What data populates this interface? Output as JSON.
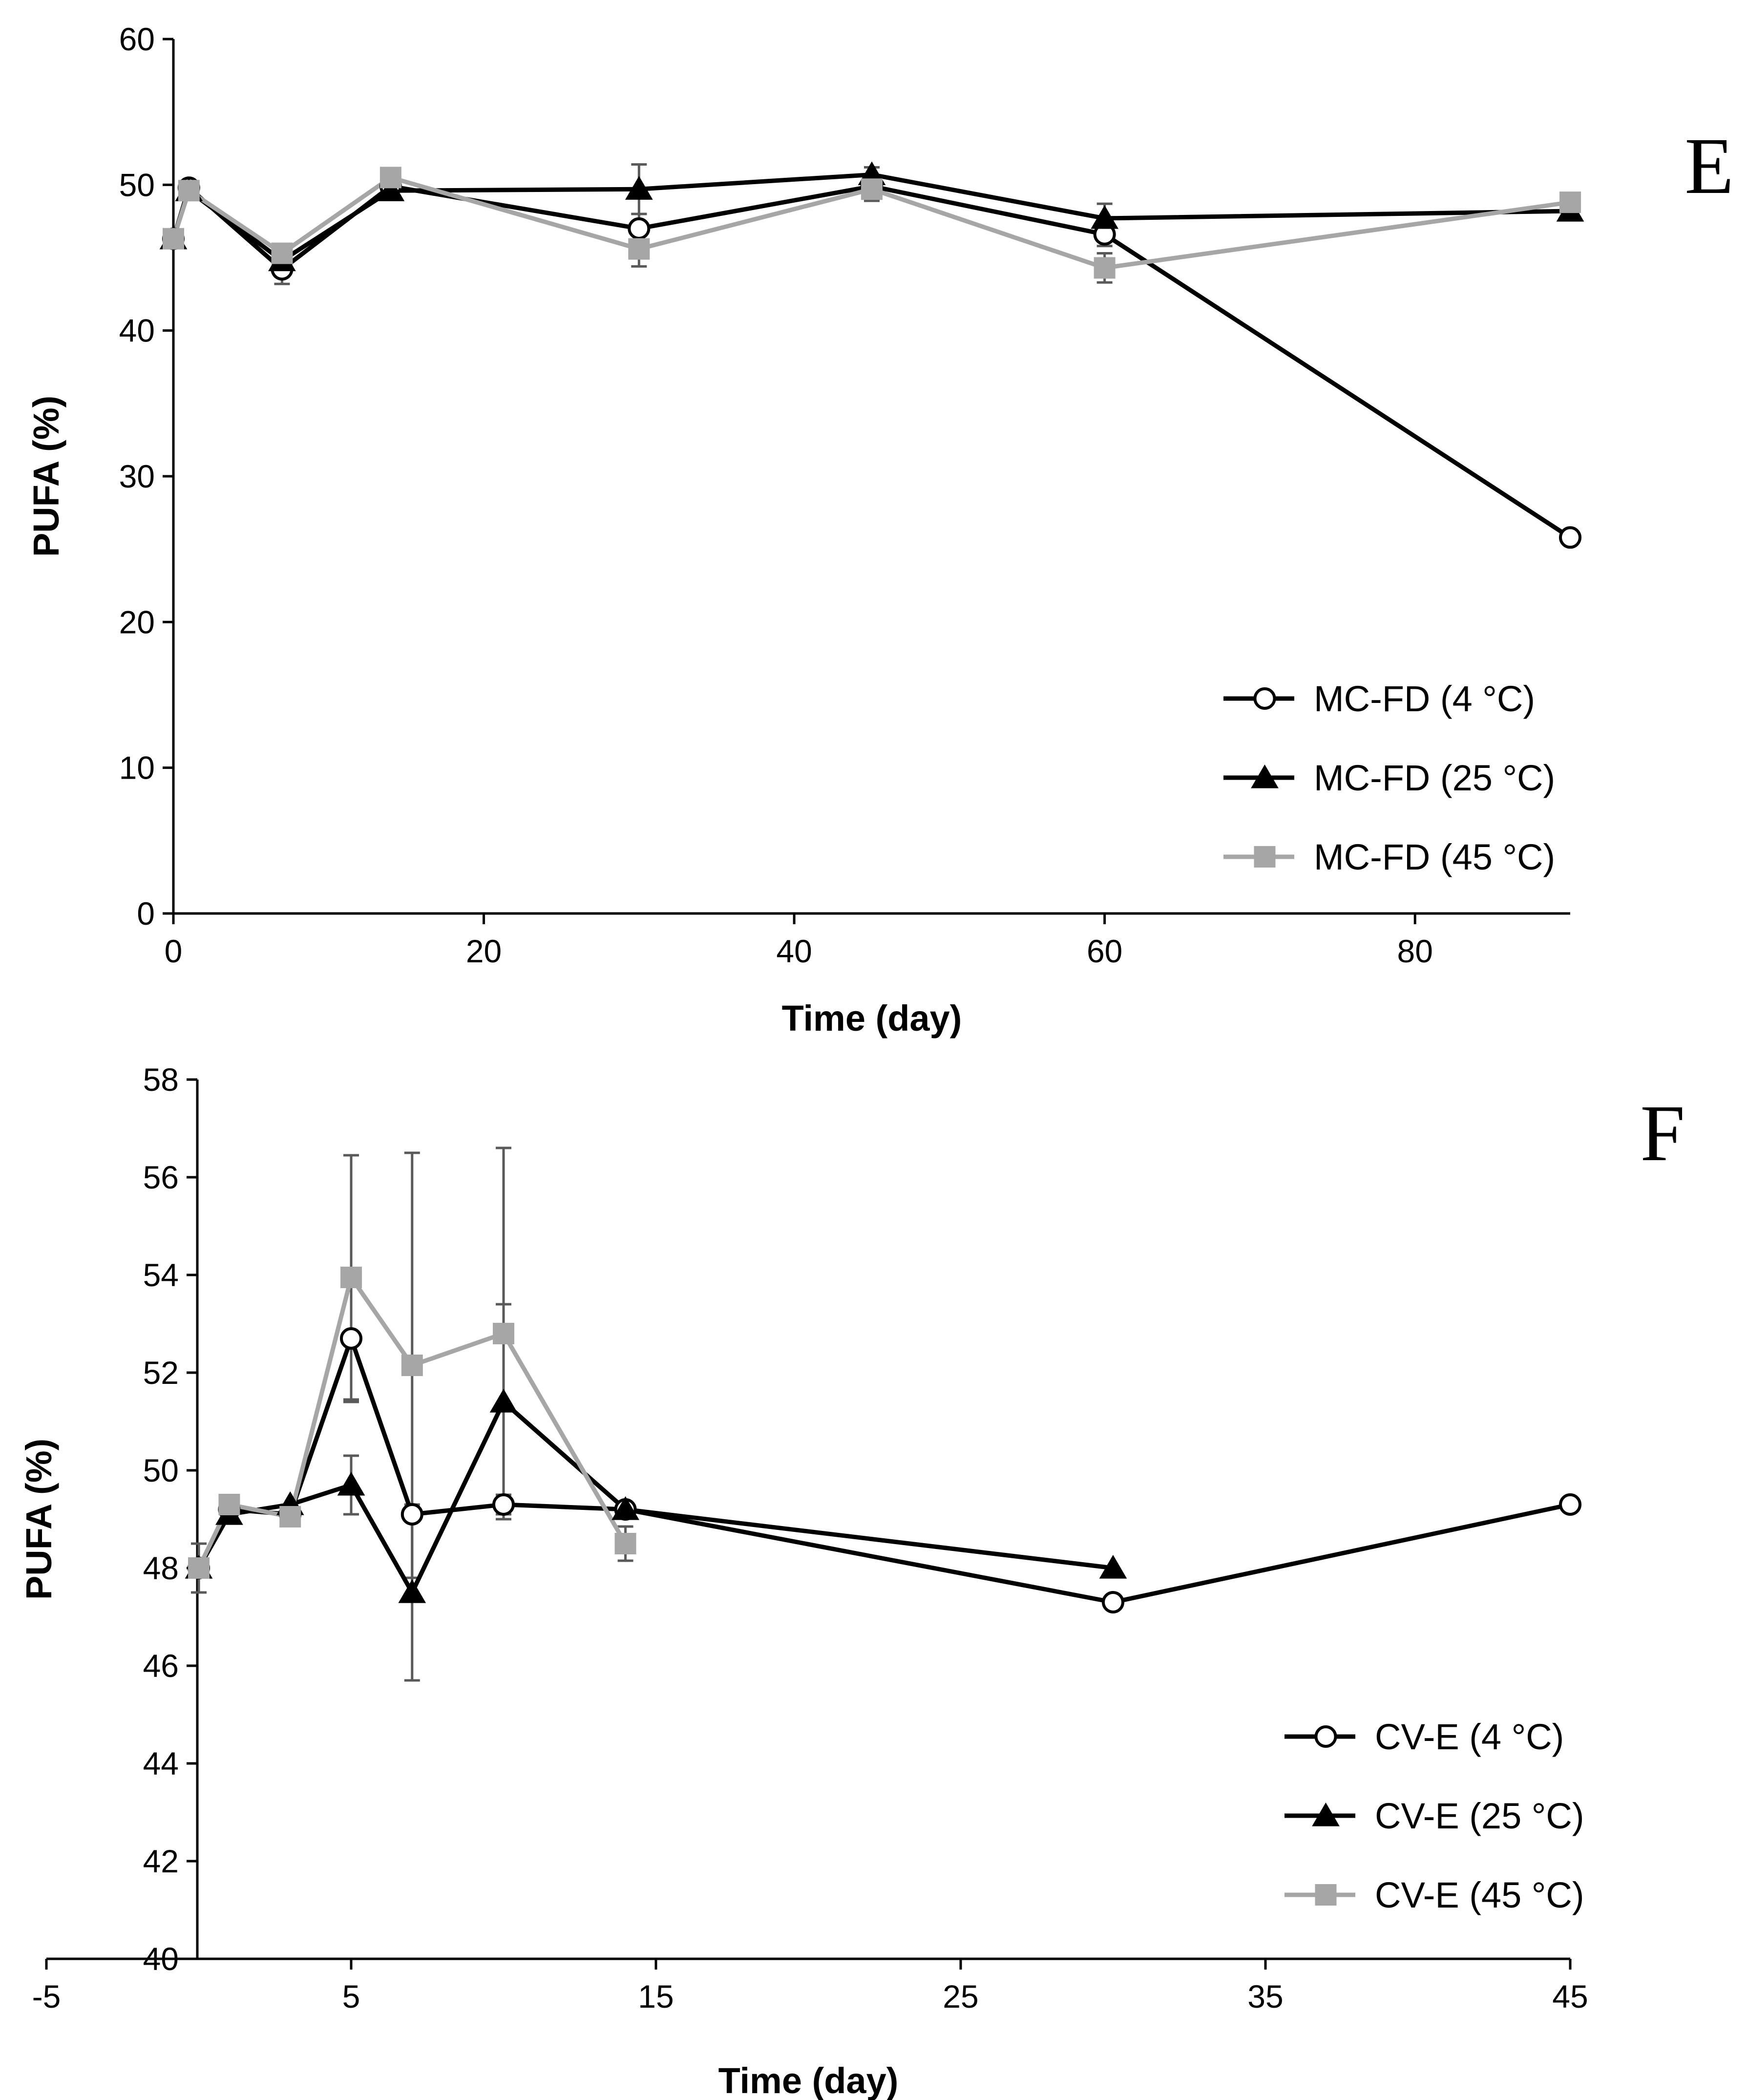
{
  "chart_data": [
    {
      "type": "line",
      "panel_label": "E",
      "xlabel": "Time (day)",
      "ylabel": "PUFA (%)",
      "xlim": [
        0,
        90
      ],
      "ylim": [
        0,
        60
      ],
      "xticks": [
        0,
        20,
        40,
        60,
        80
      ],
      "yticks": [
        0,
        10,
        20,
        30,
        40,
        50,
        60
      ],
      "grid": false,
      "legend_position": "bottom-right",
      "series": [
        {
          "name": "MC-FD (4 °C)",
          "color": "#000000",
          "marker": "open-circle",
          "points": [
            {
              "x": 0,
              "y": 46.3
            },
            {
              "x": 1,
              "y": 49.8
            },
            {
              "x": 7,
              "y": 44.2,
              "err": 1.0
            },
            {
              "x": 14,
              "y": 49.9
            },
            {
              "x": 30,
              "y": 47.0,
              "err": 1.0
            },
            {
              "x": 45,
              "y": 49.9,
              "err": 0.7
            },
            {
              "x": 60,
              "y": 46.6,
              "err": 0.8
            },
            {
              "x": 90,
              "y": 25.8
            }
          ]
        },
        {
          "name": "MC-FD (25 °C)",
          "color": "#000000",
          "marker": "filled-triangle",
          "points": [
            {
              "x": 0,
              "y": 46.3
            },
            {
              "x": 1,
              "y": 49.6
            },
            {
              "x": 7,
              "y": 44.8
            },
            {
              "x": 14,
              "y": 49.6
            },
            {
              "x": 30,
              "y": 49.7,
              "err": 1.7
            },
            {
              "x": 45,
              "y": 50.7,
              "err": 0.5
            },
            {
              "x": 60,
              "y": 47.7,
              "err": 1.0
            },
            {
              "x": 90,
              "y": 48.2
            }
          ]
        },
        {
          "name": "MC-FD (45 °C)",
          "color": "#a6a6a6",
          "marker": "filled-square",
          "points": [
            {
              "x": 0,
              "y": 46.3
            },
            {
              "x": 1,
              "y": 49.6
            },
            {
              "x": 7,
              "y": 45.3
            },
            {
              "x": 14,
              "y": 50.5
            },
            {
              "x": 30,
              "y": 45.6,
              "err": 1.2
            },
            {
              "x": 45,
              "y": 49.7,
              "err": 0.8
            },
            {
              "x": 60,
              "y": 44.3,
              "err": 1.0
            },
            {
              "x": 90,
              "y": 48.8
            }
          ]
        }
      ]
    },
    {
      "type": "line",
      "panel_label": "F",
      "xlabel": "Time (day)",
      "ylabel": "PUFA (%)",
      "xlim": [
        -5,
        45
      ],
      "ylim": [
        40,
        58
      ],
      "xticks": [
        -5,
        5,
        15,
        25,
        35,
        45
      ],
      "yticks": [
        40,
        42,
        44,
        46,
        48,
        50,
        52,
        54,
        56,
        58
      ],
      "grid": false,
      "legend_position": "bottom-right",
      "series": [
        {
          "name": "CV-E (4 °C)",
          "color": "#000000",
          "marker": "open-circle",
          "points": [
            {
              "x": 0,
              "y": 48.0
            },
            {
              "x": 1,
              "y": 49.2
            },
            {
              "x": 3,
              "y": 49.1
            },
            {
              "x": 5,
              "y": 52.7,
              "err": 1.3
            },
            {
              "x": 7,
              "y": 49.1
            },
            {
              "x": 10,
              "y": 49.3,
              "err": 0.2
            },
            {
              "x": 14,
              "y": 49.2
            },
            {
              "x": 30,
              "y": 47.3
            },
            {
              "x": 45,
              "y": 49.3
            }
          ]
        },
        {
          "name": "CV-E (25 °C)",
          "color": "#000000",
          "marker": "filled-triangle",
          "points": [
            {
              "x": 0,
              "y": 48.0
            },
            {
              "x": 1,
              "y": 49.1
            },
            {
              "x": 3,
              "y": 49.3
            },
            {
              "x": 5,
              "y": 49.7,
              "err": 0.6
            },
            {
              "x": 7,
              "y": 47.5,
              "err": 1.8
            },
            {
              "x": 10,
              "y": 51.4,
              "err": 2.0
            },
            {
              "x": 14,
              "y": 49.2
            },
            {
              "x": 30,
              "y": 48.0
            }
          ]
        },
        {
          "name": "CV-E (45 °C)",
          "color": "#a6a6a6",
          "marker": "filled-square",
          "points": [
            {
              "x": 0,
              "y": 48.0,
              "err": 0.5
            },
            {
              "x": 1,
              "y": 49.3
            },
            {
              "x": 3,
              "y": 49.05
            },
            {
              "x": 5,
              "y": 53.95,
              "err": 2.5
            },
            {
              "x": 7,
              "y": 52.15,
              "err": 4.35
            },
            {
              "x": 10,
              "y": 52.8,
              "err": 3.8
            },
            {
              "x": 14,
              "y": 48.5,
              "err": 0.35
            }
          ]
        }
      ]
    }
  ]
}
